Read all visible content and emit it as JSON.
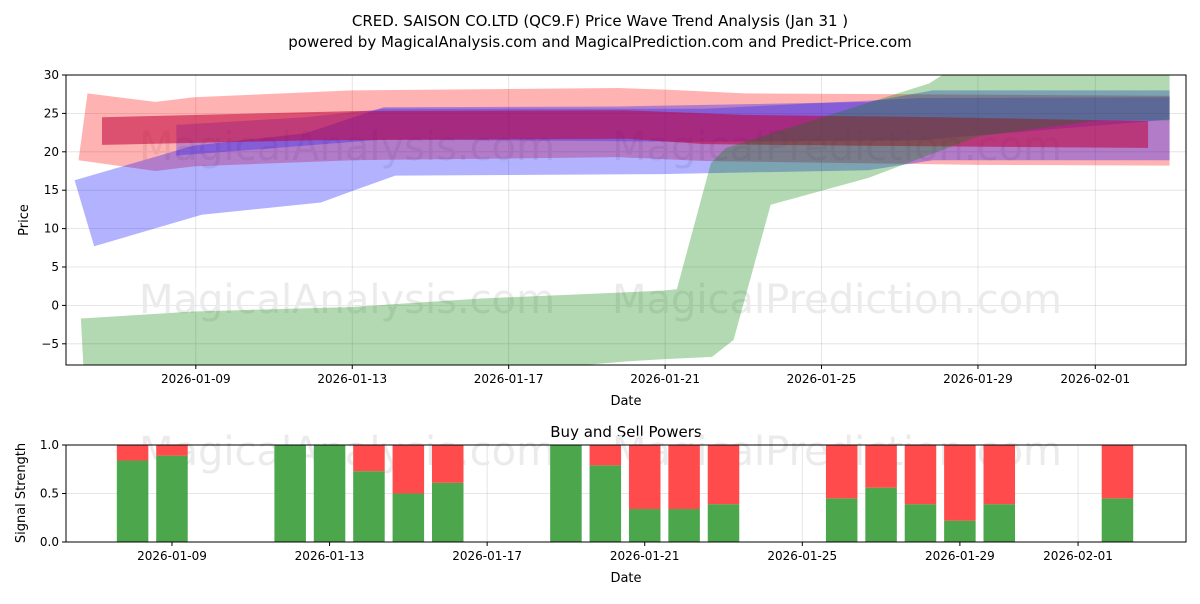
{
  "chart_data": [
    {
      "type": "area",
      "title_line1": "CRED. SAISON CO.LTD (QC9.F) Price Wave Trend Analysis (Jan 31 )",
      "title_line2": "powered by MagicalAnalysis.com and MagicalPrediction.com and Predict-Price.com",
      "xlabel": "Date",
      "ylabel": "Price",
      "x_unit": "days since 2026-01-01",
      "xlim": [
        4.68,
        33.32
      ],
      "ylim": [
        -7.76,
        30
      ],
      "grid": true,
      "xticks": [
        {
          "x": 8,
          "label": "2026-01-09"
        },
        {
          "x": 12,
          "label": "2026-01-13"
        },
        {
          "x": 16,
          "label": "2026-01-17"
        },
        {
          "x": 20,
          "label": "2026-01-21"
        },
        {
          "x": 24,
          "label": "2026-01-25"
        },
        {
          "x": 28,
          "label": "2026-01-29"
        },
        {
          "x": 31,
          "label": "2026-02-01"
        }
      ],
      "yticks": [
        {
          "y": 30,
          "label": "30"
        },
        {
          "y": 25,
          "label": "25"
        },
        {
          "y": 20,
          "label": "20"
        },
        {
          "y": 15,
          "label": "15"
        },
        {
          "y": 10,
          "label": "10"
        },
        {
          "y": 5,
          "label": "5"
        },
        {
          "y": 0,
          "label": "0"
        },
        {
          "y": -5,
          "label": "−5"
        }
      ],
      "watermarks": [
        "MagicalAnalysis.com",
        "MagicalPrediction.com"
      ],
      "bands": [
        {
          "name": "red-outer",
          "color": "#ff0000",
          "opacity": 0.3,
          "upper": [
            [
              5.23,
              27.6
            ],
            [
              6.97,
              26.5
            ],
            [
              7.95,
              27.1
            ],
            [
              12,
              28.0
            ],
            [
              18.8,
              28.3
            ],
            [
              20,
              28.1
            ],
            [
              22.05,
              27.6
            ],
            [
              26.2,
              27.5
            ],
            [
              32.9,
              27.3
            ]
          ],
          "lower": [
            [
              5.0,
              18.9
            ],
            [
              6.97,
              17.5
            ],
            [
              7.95,
              18.1
            ],
            [
              12,
              18.9
            ],
            [
              18.8,
              19.3
            ],
            [
              21,
              18.8
            ],
            [
              28,
              18.3
            ],
            [
              32.9,
              18.2
            ]
          ]
        },
        {
          "name": "blue-outer",
          "color": "#0000ff",
          "opacity": 0.3,
          "upper": [
            [
              4.9,
              16.3
            ],
            [
              7.95,
              20.8
            ],
            [
              10.8,
              22.4
            ],
            [
              12.8,
              25.8
            ],
            [
              18.8,
              25.9
            ],
            [
              25.2,
              26.5
            ],
            [
              26.85,
              28.0
            ],
            [
              32.9,
              28.0
            ]
          ],
          "lower": [
            [
              5.4,
              7.7
            ],
            [
              8.15,
              11.8
            ],
            [
              11.2,
              13.4
            ],
            [
              12,
              14.9
            ],
            [
              13.1,
              16.9
            ],
            [
              19.9,
              17.1
            ],
            [
              25.2,
              17.6
            ],
            [
              26.85,
              18.9
            ],
            [
              32.9,
              18.9
            ]
          ]
        },
        {
          "name": "blue-inner",
          "color": "#0000ff",
          "opacity": 0.25,
          "upper": [
            [
              7.5,
              23.5
            ],
            [
              10.8,
              24.5
            ],
            [
              12.8,
              25.6
            ],
            [
              21,
              25.6
            ],
            [
              26.5,
              27.0
            ],
            [
              32.9,
              27.1
            ]
          ],
          "lower": [
            [
              7.5,
              19.5
            ],
            [
              12.8,
              21.6
            ],
            [
              21,
              21.3
            ],
            [
              26.5,
              21.5
            ],
            [
              32.9,
              24.2
            ]
          ]
        },
        {
          "name": "red-inner",
          "color": "#c0003a",
          "opacity": 0.55,
          "upper": [
            [
              5.6,
              24.5
            ],
            [
              12,
              25.3
            ],
            [
              19,
              25.4
            ],
            [
              22,
              24.8
            ],
            [
              27,
              24.5
            ],
            [
              32.35,
              24.0
            ]
          ],
          "lower": [
            [
              5.6,
              20.9
            ],
            [
              11,
              21.5
            ],
            [
              19,
              21.7
            ],
            [
              21,
              21.0
            ],
            [
              27,
              20.7
            ],
            [
              32.35,
              20.5
            ]
          ]
        },
        {
          "name": "green",
          "color": "#008000",
          "opacity": 0.3,
          "upper": [
            [
              5.06,
              -1.7
            ],
            [
              7.95,
              -0.8
            ],
            [
              12,
              -0.2
            ],
            [
              15.3,
              0.9
            ],
            [
              19.9,
              1.9
            ],
            [
              20.3,
              2.1
            ],
            [
              21.17,
              18.5
            ],
            [
              21.55,
              20.5
            ],
            [
              26.75,
              28.9
            ],
            [
              27.4,
              31
            ],
            [
              32.9,
              31
            ]
          ],
          "lower": [
            [
              5.2,
              -15
            ],
            [
              15,
              -9
            ],
            [
              19,
              -7.3
            ],
            [
              20,
              -7.0
            ],
            [
              21.2,
              -6.7
            ],
            [
              21.75,
              -4.5
            ],
            [
              22.7,
              13.1
            ],
            [
              25.2,
              16.6
            ],
            [
              28,
              22.0
            ],
            [
              31.1,
              24.1
            ],
            [
              32.9,
              24.1
            ]
          ]
        }
      ]
    },
    {
      "type": "bar",
      "title": "Buy and Sell Powers",
      "xlabel": "Date",
      "ylabel": "Signal Strength",
      "x_unit": "days since 2026-01-01",
      "xlim": [
        5.31,
        33.74
      ],
      "ylim": [
        0,
        1
      ],
      "xticks": [
        {
          "x": 8,
          "label": "2026-01-09"
        },
        {
          "x": 12,
          "label": "2026-01-13"
        },
        {
          "x": 16,
          "label": "2026-01-17"
        },
        {
          "x": 20,
          "label": "2026-01-21"
        },
        {
          "x": 24,
          "label": "2026-01-25"
        },
        {
          "x": 28,
          "label": "2026-01-29"
        },
        {
          "x": 31,
          "label": "2026-02-01"
        }
      ],
      "yticks": [
        {
          "y": 0,
          "label": "0.0"
        },
        {
          "y": 0.5,
          "label": "0.5"
        },
        {
          "y": 1,
          "label": "1.0"
        }
      ],
      "buy_color": "#4ca64c",
      "sell_color": "#ff4b4b",
      "bars": [
        {
          "date": "2026-01-08",
          "x": 7,
          "buy": 0.84
        },
        {
          "date": "2026-01-09",
          "x": 8,
          "buy": 0.89
        },
        {
          "date": "2026-01-12",
          "x": 11,
          "buy": 1.0
        },
        {
          "date": "2026-01-13",
          "x": 12,
          "buy": 1.0
        },
        {
          "date": "2026-01-14",
          "x": 13,
          "buy": 0.73
        },
        {
          "date": "2026-01-15",
          "x": 14,
          "buy": 0.5
        },
        {
          "date": "2026-01-16",
          "x": 15,
          "buy": 0.61
        },
        {
          "date": "2026-01-19",
          "x": 18,
          "buy": 1.0
        },
        {
          "date": "2026-01-20",
          "x": 19,
          "buy": 0.79
        },
        {
          "date": "2026-01-21",
          "x": 20,
          "buy": 0.34
        },
        {
          "date": "2026-01-22",
          "x": 21,
          "buy": 0.34
        },
        {
          "date": "2026-01-23",
          "x": 22,
          "buy": 0.39
        },
        {
          "date": "2026-01-26",
          "x": 25,
          "buy": 0.45
        },
        {
          "date": "2026-01-27",
          "x": 26,
          "buy": 0.56
        },
        {
          "date": "2026-01-28",
          "x": 27,
          "buy": 0.39
        },
        {
          "date": "2026-01-29",
          "x": 28,
          "buy": 0.22
        },
        {
          "date": "2026-01-30",
          "x": 29,
          "buy": 0.39
        },
        {
          "date": "2026-02-02",
          "x": 32,
          "buy": 0.45
        }
      ]
    }
  ]
}
